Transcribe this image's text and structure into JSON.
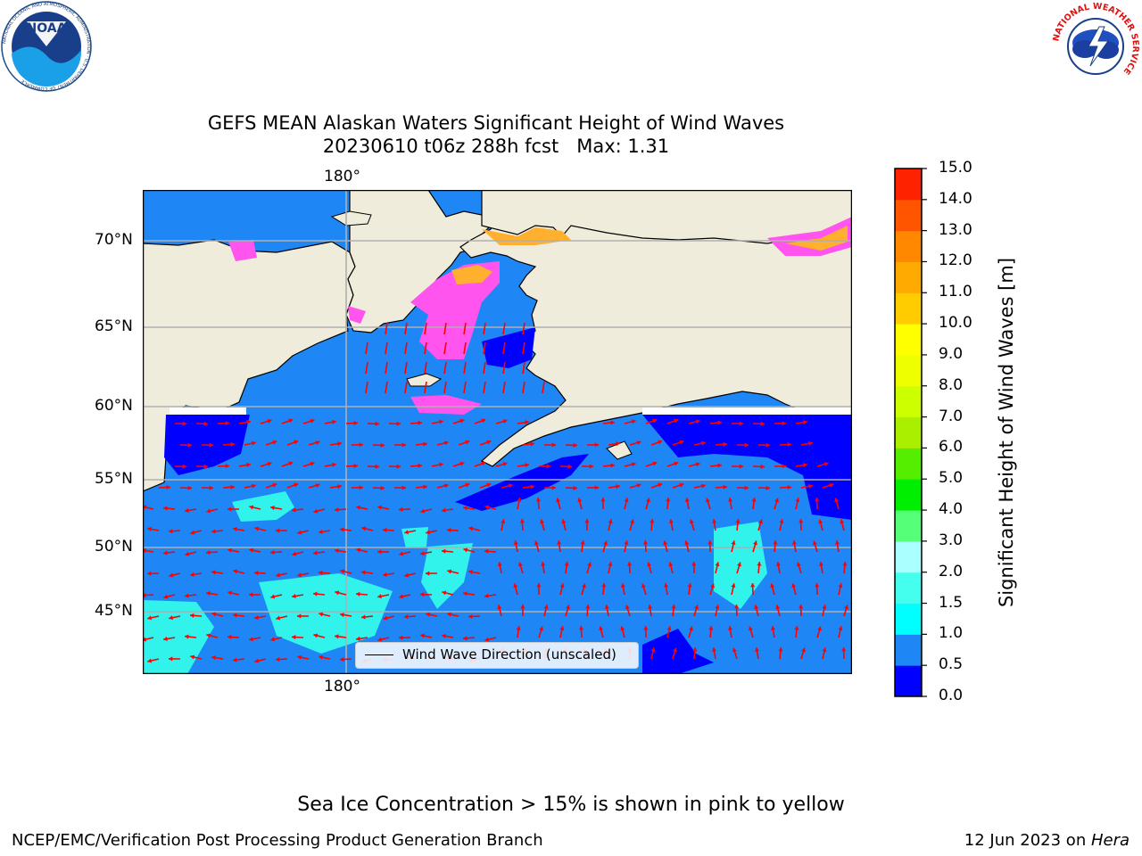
{
  "header": {
    "title_line1": "GEFS MEAN Alaskan Waters Significant Height of Wind Waves",
    "title_line2": "20230610 t06z 288h fcst   Max: 1.31"
  },
  "logos": {
    "noara_text": "NOAA",
    "noaa_ring_text": "NATIONAL OCEANIC AND ATMOSPHERIC ADMINISTRATION · U.S. DEPARTMENT OF COMMERCE",
    "nws_ring_text": "NATIONAL WEATHER SERVICE"
  },
  "map": {
    "lon_label_top": "180°",
    "lon_label_bottom": "180°",
    "lat_labels": [
      "70°N",
      "65°N",
      "60°N",
      "55°N",
      "50°N",
      "45°N"
    ],
    "legend_label": "Wind Wave Direction (unscaled)",
    "colors": {
      "land": "#efecdb",
      "ocean_main": "#1f86f5",
      "ocean_deep": "#0000ff",
      "ocean_light": "#33ffea",
      "ice_pink": "#ff55ee",
      "ice_orange": "#ffb02e",
      "arrow": "#ff0000",
      "grid": "#b0b0b0"
    }
  },
  "colorbar": {
    "label": "Significant Height of Wind Waves [m]",
    "ticks": [
      "0.0",
      "0.5",
      "1.0",
      "1.5",
      "2.0",
      "3.0",
      "4.0",
      "5.0",
      "6.0",
      "7.0",
      "8.0",
      "9.0",
      "10.0",
      "11.0",
      "12.0",
      "13.0",
      "14.0",
      "15.0"
    ],
    "colors": [
      "#0000ff",
      "#1f86f5",
      "#00ffff",
      "#44ffee",
      "#aaffff",
      "#55ff77",
      "#00ee00",
      "#55ee00",
      "#aaee00",
      "#ccff00",
      "#eeff00",
      "#ffff00",
      "#ffcc00",
      "#ffaa00",
      "#ff8800",
      "#ff5500",
      "#ff2200"
    ]
  },
  "footer": {
    "footnote": "Sea Ice Concentration > 15% is shown in pink to yellow",
    "credit": "NCEP/EMC/Verification Post Processing Product Generation Branch",
    "date": "12 Jun 2023 on ",
    "host": "Hera"
  }
}
